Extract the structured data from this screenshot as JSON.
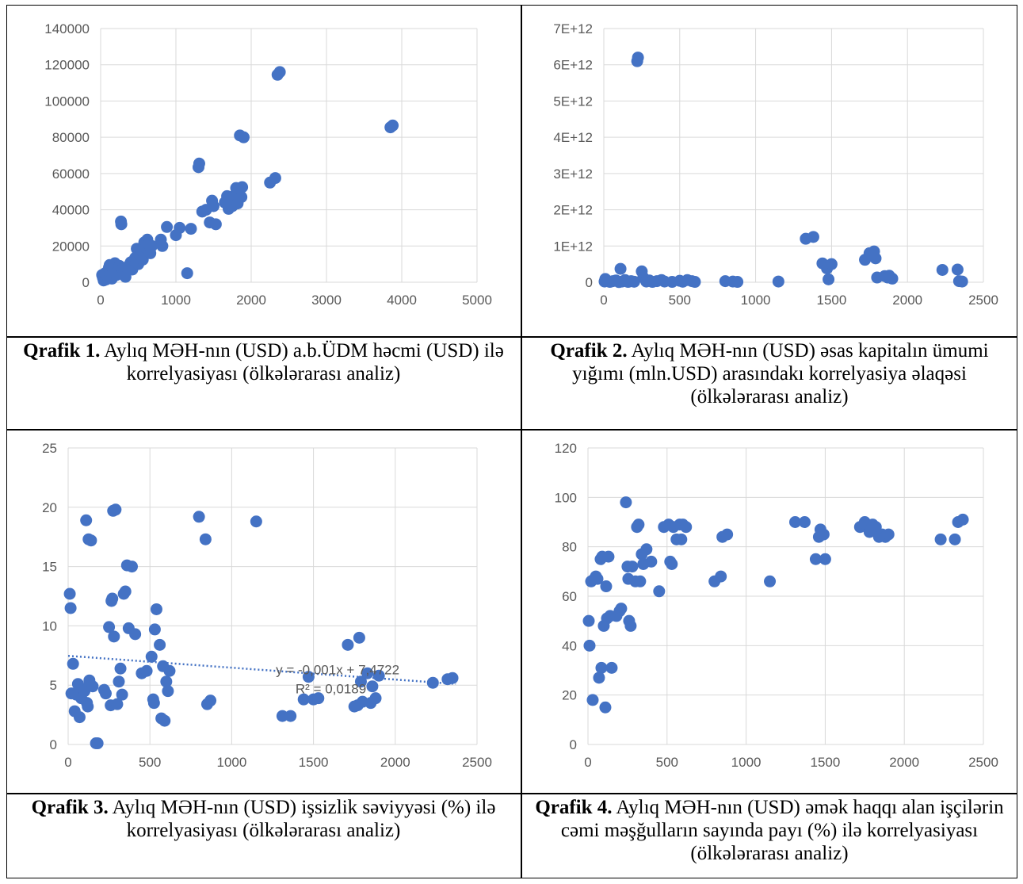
{
  "captions": [
    {
      "label": "Qrafik 1.",
      "text": "Aylıq MƏH-nın (USD) a.b.ÜDM həcmi (USD) ilə korrelyasiyası (ölkələrarası analiz)"
    },
    {
      "label": "Qrafik 2.",
      "text": "Aylıq MƏH-nın (USD) əsas kapitalın ümumi yığımı (mln.USD) arasındakı korrelyasiya əlaqəsi (ölkələrarası analiz)"
    },
    {
      "label": "Qrafik 3.",
      "text": "Aylıq MƏH-nın (USD) işsizlik səviyyəsi (%) ilə korrelyasiyası (ölkələrarası analiz)"
    },
    {
      "label": "Qrafik 4.",
      "text": "Aylıq MƏH-nın (USD) əmək haqqı alan işçilərin cəmi məşğulların sayında payı (%) ilə korrelyasiyası (ölkələrarası analiz)"
    }
  ],
  "colors": {
    "marker": "#4472c4",
    "grid": "#d9d9d9",
    "tick_text": "#595959"
  },
  "chart_data": [
    {
      "type": "scatter",
      "grid": true,
      "xlim": [
        0,
        5000
      ],
      "ylim": [
        0,
        140000
      ],
      "xticks": [
        "0",
        "1000",
        "2000",
        "3000",
        "4000",
        "5000"
      ],
      "xtick_values": [
        0,
        1000,
        2000,
        3000,
        4000,
        5000
      ],
      "yticks": [
        "0",
        "20000",
        "40000",
        "60000",
        "80000",
        "100000",
        "120000",
        "140000"
      ],
      "ytick_values": [
        0,
        20000,
        40000,
        60000,
        80000,
        100000,
        120000,
        140000
      ],
      "points": [
        [
          20,
          4000
        ],
        [
          30,
          2500
        ],
        [
          40,
          1000
        ],
        [
          50,
          3000
        ],
        [
          60,
          5000
        ],
        [
          70,
          1500
        ],
        [
          80,
          2000
        ],
        [
          90,
          3500
        ],
        [
          100,
          6000
        ],
        [
          110,
          8000
        ],
        [
          120,
          9500
        ],
        [
          130,
          3000
        ],
        [
          150,
          2000
        ],
        [
          160,
          5000
        ],
        [
          170,
          7000
        ],
        [
          190,
          10500
        ],
        [
          210,
          4000
        ],
        [
          230,
          6000
        ],
        [
          250,
          9000
        ],
        [
          270,
          33500
        ],
        [
          275,
          32000
        ],
        [
          290,
          7500
        ],
        [
          310,
          5000
        ],
        [
          330,
          3000
        ],
        [
          350,
          8000
        ],
        [
          380,
          9500
        ],
        [
          400,
          11000
        ],
        [
          420,
          7000
        ],
        [
          440,
          12000
        ],
        [
          460,
          13500
        ],
        [
          480,
          18500
        ],
        [
          500,
          10000
        ],
        [
          520,
          15000
        ],
        [
          540,
          17500
        ],
        [
          560,
          12500
        ],
        [
          580,
          22000
        ],
        [
          600,
          19000
        ],
        [
          620,
          23500
        ],
        [
          640,
          21000
        ],
        [
          660,
          16000
        ],
        [
          680,
          20000
        ],
        [
          800,
          23500
        ],
        [
          820,
          20000
        ],
        [
          880,
          30500
        ],
        [
          1000,
          26000
        ],
        [
          1050,
          30000
        ],
        [
          1150,
          5000
        ],
        [
          1200,
          29500
        ],
        [
          1300,
          63500
        ],
        [
          1310,
          65500
        ],
        [
          1350,
          39000
        ],
        [
          1400,
          40000
        ],
        [
          1450,
          33000
        ],
        [
          1480,
          45000
        ],
        [
          1500,
          42000
        ],
        [
          1530,
          32000
        ],
        [
          1650,
          44000
        ],
        [
          1680,
          47500
        ],
        [
          1700,
          40500
        ],
        [
          1720,
          45000
        ],
        [
          1750,
          42000
        ],
        [
          1780,
          48000
        ],
        [
          1800,
          52000
        ],
        [
          1820,
          43500
        ],
        [
          1850,
          81000
        ],
        [
          1870,
          47000
        ],
        [
          1880,
          52500
        ],
        [
          1900,
          80000
        ],
        [
          2250,
          55000
        ],
        [
          2320,
          57500
        ],
        [
          2350,
          114500
        ],
        [
          2380,
          116000
        ],
        [
          3850,
          85500
        ],
        [
          3880,
          86500
        ]
      ]
    },
    {
      "type": "scatter",
      "grid": true,
      "xlim": [
        0,
        2500
      ],
      "ylim": [
        0,
        7000000000000
      ],
      "xticks": [
        "0",
        "500",
        "1000",
        "1500",
        "2000",
        "2500"
      ],
      "xtick_values": [
        0,
        500,
        1000,
        1500,
        2000,
        2500
      ],
      "yticks": [
        "0",
        "1E+12",
        "2E+12",
        "3E+12",
        "4E+12",
        "5E+12",
        "6E+12",
        "7E+12"
      ],
      "ytick_values": [
        0,
        1000000000000,
        2000000000000,
        3000000000000,
        4000000000000,
        5000000000000,
        6000000000000,
        7000000000000
      ],
      "points": [
        [
          5,
          20000000000
        ],
        [
          10,
          90000000000
        ],
        [
          20,
          40000000000
        ],
        [
          40,
          10000000000
        ],
        [
          60,
          30000000000
        ],
        [
          80,
          50000000000
        ],
        [
          100,
          5000000000
        ],
        [
          110,
          370000000000
        ],
        [
          120,
          20000000000
        ],
        [
          140,
          60000000000
        ],
        [
          160,
          10000000000
        ],
        [
          180,
          30000000000
        ],
        [
          200,
          15000000000
        ],
        [
          220,
          6100000000000
        ],
        [
          225,
          6200000000000
        ],
        [
          250,
          300000000000
        ],
        [
          260,
          130000000000
        ],
        [
          280,
          20000000000
        ],
        [
          300,
          50000000000
        ],
        [
          320,
          10000000000
        ],
        [
          350,
          30000000000
        ],
        [
          380,
          60000000000
        ],
        [
          400,
          20000000000
        ],
        [
          450,
          10000000000
        ],
        [
          500,
          40000000000
        ],
        [
          520,
          15000000000
        ],
        [
          550,
          60000000000
        ],
        [
          580,
          30000000000
        ],
        [
          600,
          10000000000
        ],
        [
          800,
          30000000000
        ],
        [
          850,
          20000000000
        ],
        [
          880,
          10000000000
        ],
        [
          1150,
          20000000000
        ],
        [
          1330,
          1200000000000
        ],
        [
          1380,
          1250000000000
        ],
        [
          1440,
          520000000000
        ],
        [
          1470,
          380000000000
        ],
        [
          1480,
          80000000000
        ],
        [
          1500,
          500000000000
        ],
        [
          1720,
          620000000000
        ],
        [
          1750,
          800000000000
        ],
        [
          1780,
          850000000000
        ],
        [
          1790,
          660000000000
        ],
        [
          1800,
          130000000000
        ],
        [
          1850,
          170000000000
        ],
        [
          1870,
          130000000000
        ],
        [
          1880,
          180000000000
        ],
        [
          1900,
          100000000000
        ],
        [
          2230,
          340000000000
        ],
        [
          2330,
          350000000000
        ],
        [
          2340,
          30000000000
        ],
        [
          2360,
          20000000000
        ]
      ]
    },
    {
      "type": "scatter",
      "grid": true,
      "xlim": [
        0,
        2500
      ],
      "ylim": [
        0,
        25
      ],
      "xticks": [
        "0",
        "500",
        "1000",
        "1500",
        "2000",
        "2500"
      ],
      "xtick_values": [
        0,
        500,
        1000,
        1500,
        2000,
        2500
      ],
      "yticks": [
        "0",
        "5",
        "10",
        "15",
        "20",
        "25"
      ],
      "ytick_values": [
        0,
        5,
        10,
        15,
        20,
        25
      ],
      "trendline": {
        "intercept": 7.4722,
        "slope": -0.001,
        "equation": "y = -0,001x + 7,4722",
        "r2": "R² = 0,0189"
      },
      "points": [
        [
          10,
          12.7
        ],
        [
          15,
          11.5
        ],
        [
          20,
          4.3
        ],
        [
          30,
          6.8
        ],
        [
          40,
          2.8
        ],
        [
          50,
          4.2
        ],
        [
          60,
          5.1
        ],
        [
          70,
          2.3
        ],
        [
          80,
          3.9
        ],
        [
          90,
          4.7
        ],
        [
          100,
          4.5
        ],
        [
          110,
          18.9
        ],
        [
          115,
          3.5
        ],
        [
          120,
          3.2
        ],
        [
          125,
          17.3
        ],
        [
          130,
          5.4
        ],
        [
          140,
          17.2
        ],
        [
          150,
          4.9
        ],
        [
          170,
          0.1
        ],
        [
          180,
          0.1
        ],
        [
          220,
          4.6
        ],
        [
          230,
          4.3
        ],
        [
          250,
          9.9
        ],
        [
          260,
          3.3
        ],
        [
          265,
          12.1
        ],
        [
          270,
          12.3
        ],
        [
          275,
          19.7
        ],
        [
          280,
          9.1
        ],
        [
          290,
          19.8
        ],
        [
          300,
          3.4
        ],
        [
          310,
          5.3
        ],
        [
          320,
          6.4
        ],
        [
          330,
          4.2
        ],
        [
          340,
          12.7
        ],
        [
          350,
          12.9
        ],
        [
          360,
          15.1
        ],
        [
          370,
          9.8
        ],
        [
          390,
          15.0
        ],
        [
          410,
          9.3
        ],
        [
          450,
          6.0
        ],
        [
          480,
          6.2
        ],
        [
          510,
          7.4
        ],
        [
          520,
          3.8
        ],
        [
          525,
          3.5
        ],
        [
          530,
          9.7
        ],
        [
          540,
          11.4
        ],
        [
          560,
          8.4
        ],
        [
          570,
          2.2
        ],
        [
          580,
          6.6
        ],
        [
          590,
          2.0
        ],
        [
          600,
          5.3
        ],
        [
          610,
          4.5
        ],
        [
          620,
          6.2
        ],
        [
          800,
          19.2
        ],
        [
          840,
          17.3
        ],
        [
          850,
          3.4
        ],
        [
          870,
          3.7
        ],
        [
          1150,
          18.8
        ],
        [
          1310,
          2.4
        ],
        [
          1360,
          2.4
        ],
        [
          1440,
          3.8
        ],
        [
          1470,
          5.7
        ],
        [
          1500,
          3.8
        ],
        [
          1530,
          3.9
        ],
        [
          1710,
          8.4
        ],
        [
          1750,
          3.2
        ],
        [
          1770,
          3.3
        ],
        [
          1780,
          9.0
        ],
        [
          1790,
          5.3
        ],
        [
          1800,
          3.6
        ],
        [
          1830,
          6.0
        ],
        [
          1850,
          3.5
        ],
        [
          1860,
          4.9
        ],
        [
          1880,
          3.9
        ],
        [
          1900,
          5.8
        ],
        [
          2230,
          5.2
        ],
        [
          2320,
          5.5
        ],
        [
          2350,
          5.6
        ]
      ]
    },
    {
      "type": "scatter",
      "grid": true,
      "xlim": [
        0,
        2500
      ],
      "ylim": [
        0,
        120
      ],
      "xticks": [
        "0",
        "500",
        "1000",
        "1500",
        "2000",
        "2500"
      ],
      "xtick_values": [
        0,
        500,
        1000,
        1500,
        2000,
        2500
      ],
      "yticks": [
        "0",
        "20",
        "40",
        "60",
        "80",
        "100",
        "120"
      ],
      "ytick_values": [
        0,
        20,
        40,
        60,
        80,
        100,
        120
      ],
      "points": [
        [
          5,
          50
        ],
        [
          10,
          40
        ],
        [
          20,
          66
        ],
        [
          30,
          18
        ],
        [
          40,
          67
        ],
        [
          50,
          68
        ],
        [
          60,
          67
        ],
        [
          70,
          27
        ],
        [
          80,
          75
        ],
        [
          85,
          31
        ],
        [
          90,
          76
        ],
        [
          100,
          48
        ],
        [
          110,
          15
        ],
        [
          115,
          64
        ],
        [
          120,
          51
        ],
        [
          130,
          76
        ],
        [
          140,
          52
        ],
        [
          150,
          31
        ],
        [
          180,
          52
        ],
        [
          200,
          54
        ],
        [
          210,
          55
        ],
        [
          240,
          98
        ],
        [
          250,
          72
        ],
        [
          255,
          67
        ],
        [
          260,
          50
        ],
        [
          270,
          48
        ],
        [
          280,
          72
        ],
        [
          300,
          66
        ],
        [
          310,
          88
        ],
        [
          320,
          89
        ],
        [
          330,
          66
        ],
        [
          340,
          77
        ],
        [
          350,
          73
        ],
        [
          370,
          79
        ],
        [
          400,
          74
        ],
        [
          450,
          62
        ],
        [
          480,
          88
        ],
        [
          510,
          89
        ],
        [
          520,
          74
        ],
        [
          530,
          73
        ],
        [
          540,
          88
        ],
        [
          560,
          83
        ],
        [
          580,
          89
        ],
        [
          590,
          83
        ],
        [
          600,
          89
        ],
        [
          620,
          88
        ],
        [
          800,
          66
        ],
        [
          840,
          68
        ],
        [
          850,
          84
        ],
        [
          880,
          85
        ],
        [
          1150,
          66
        ],
        [
          1310,
          90
        ],
        [
          1370,
          90
        ],
        [
          1440,
          75
        ],
        [
          1460,
          84
        ],
        [
          1470,
          87
        ],
        [
          1490,
          85
        ],
        [
          1500,
          75
        ],
        [
          1720,
          88
        ],
        [
          1750,
          90
        ],
        [
          1760,
          89
        ],
        [
          1780,
          86
        ],
        [
          1790,
          87
        ],
        [
          1800,
          89
        ],
        [
          1820,
          88
        ],
        [
          1840,
          84
        ],
        [
          1860,
          85
        ],
        [
          1880,
          84
        ],
        [
          1900,
          85
        ],
        [
          2230,
          83
        ],
        [
          2320,
          83
        ],
        [
          2340,
          90
        ],
        [
          2370,
          91
        ]
      ]
    }
  ]
}
